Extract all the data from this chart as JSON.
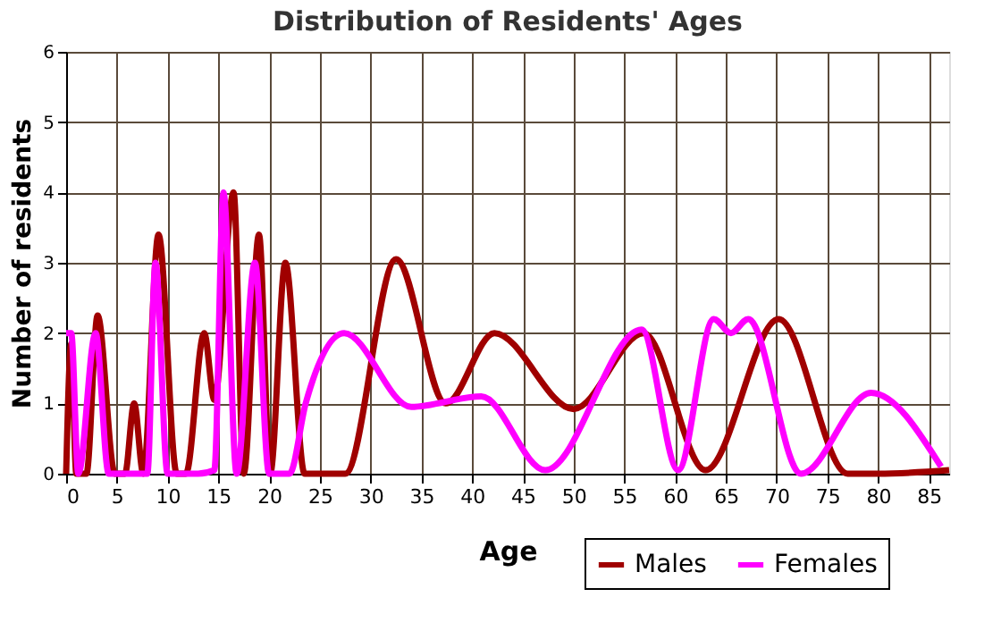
{
  "chart_data": {
    "type": "line",
    "title": "Distribution of Residents' Ages",
    "xlabel": "Age",
    "ylabel": "Number of residents",
    "xlim": [
      0,
      87
    ],
    "xticks": [
      0,
      5,
      10,
      15,
      20,
      25,
      30,
      35,
      40,
      45,
      50,
      55,
      60,
      65,
      70,
      75,
      80,
      85
    ],
    "ylim": [
      0,
      6
    ],
    "yticks": [
      0,
      1,
      2,
      3,
      4,
      5,
      6
    ],
    "grid": true,
    "legend": "bottom right",
    "marker": "none",
    "line_style": "solid",
    "series": [
      {
        "name": "Males",
        "color": "#a00000",
        "x": [
          0,
          0.5,
          1,
          2,
          3.1,
          4.8,
          5.8,
          6.7,
          7.6,
          9.1,
          10.9,
          11.8,
          13.6,
          14.6,
          16.5,
          17.5,
          19,
          20.1,
          21.6,
          23.5,
          27.5,
          32.5,
          37.4,
          42.2,
          50,
          56.9,
          63,
          70.2,
          77,
          80,
          87
        ],
        "values": [
          0,
          1.85,
          0,
          0,
          2.25,
          0,
          0,
          1,
          0,
          3.4,
          0,
          0,
          2,
          1.05,
          4,
          0,
          3.4,
          0,
          3,
          0,
          0,
          3.05,
          1,
          2,
          0.92,
          2,
          0.05,
          2.2,
          0,
          0,
          0.05
        ]
      },
      {
        "name": "Females",
        "color": "#ff00ff",
        "x": [
          0,
          0.5,
          1.2,
          2.9,
          4.2,
          8,
          8.8,
          10,
          13,
          14.6,
          15.5,
          16.8,
          18.6,
          20,
          22,
          23.6,
          27.4,
          34,
          40.9,
          47.2,
          56.7,
          60.3,
          63.8,
          65.5,
          67.2,
          72.4,
          79.3,
          86.2
        ],
        "values": [
          2,
          2,
          0,
          2,
          0,
          0,
          3,
          0,
          0,
          0.05,
          4,
          0,
          3,
          0,
          0,
          1,
          2,
          0.95,
          1.1,
          0.05,
          2.05,
          0.05,
          2.2,
          2,
          2.2,
          0,
          1.15,
          0.1
        ]
      }
    ]
  }
}
